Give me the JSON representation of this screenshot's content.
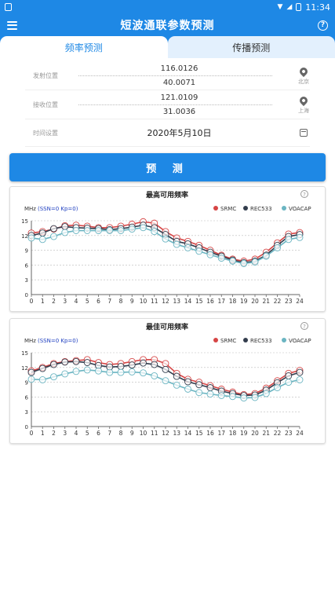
{
  "status": {
    "time": "11:34"
  },
  "appbar": {
    "title": "短波通联参数预测"
  },
  "tabs": [
    {
      "label": "频率预测",
      "active": true
    },
    {
      "label": "传播预测",
      "active": false
    }
  ],
  "form": {
    "tx": {
      "label": "发射位置",
      "lon": "116.0126",
      "lat": "40.0071",
      "city": "北京"
    },
    "rx": {
      "label": "接收位置",
      "lon": "121.0109",
      "lat": "31.0036",
      "city": "上海"
    },
    "time": {
      "label": "时间设置",
      "value": "2020年5月10日"
    }
  },
  "predict_button": "预  测",
  "colors": {
    "primary": "#1e88e5",
    "srmc": "#d64545",
    "rec533": "#333d4d",
    "voacap": "#6bb5c2"
  },
  "chart_data": [
    {
      "type": "line",
      "title": "最高可用频率",
      "ylabel": "MHz",
      "note": "(SSN=0 Kp=0)",
      "ylim": [
        0,
        15
      ],
      "yticks": [
        0,
        3,
        6,
        9,
        12,
        15
      ],
      "x": [
        0,
        1,
        2,
        3,
        4,
        5,
        6,
        7,
        8,
        9,
        10,
        11,
        12,
        13,
        14,
        15,
        16,
        17,
        18,
        19,
        20,
        21,
        22,
        23,
        24
      ],
      "series": [
        {
          "name": "SRMC",
          "color": "#d64545",
          "values": [
            12.5,
            12.8,
            13.3,
            14.0,
            14.1,
            13.9,
            13.6,
            13.6,
            13.9,
            14.3,
            14.8,
            14.5,
            12.8,
            11.5,
            10.8,
            10.0,
            9.0,
            8.0,
            7.2,
            6.8,
            7.2,
            8.6,
            10.5,
            12.3,
            12.6
          ]
        },
        {
          "name": "REC533",
          "color": "#333d4d",
          "values": [
            12.0,
            12.5,
            13.4,
            13.8,
            13.6,
            13.5,
            13.4,
            13.2,
            13.4,
            13.7,
            14.1,
            13.6,
            12.2,
            10.8,
            10.3,
            9.5,
            8.6,
            7.8,
            7.0,
            6.5,
            6.8,
            8.0,
            10.0,
            11.8,
            12.2
          ]
        },
        {
          "name": "VOACAP",
          "color": "#6bb5c2",
          "values": [
            11.5,
            11.2,
            11.8,
            12.6,
            13.0,
            13.0,
            13.0,
            13.0,
            13.0,
            13.3,
            13.6,
            12.8,
            11.3,
            10.2,
            9.5,
            8.8,
            8.1,
            7.4,
            6.8,
            6.3,
            6.6,
            7.8,
            9.5,
            11.2,
            11.6
          ]
        }
      ]
    },
    {
      "type": "line",
      "title": "最佳可用频率",
      "ylabel": "MHz",
      "note": "(SSN=0 Kp=0)",
      "ylim": [
        0,
        15
      ],
      "yticks": [
        0,
        3,
        6,
        9,
        12,
        15
      ],
      "x": [
        0,
        1,
        2,
        3,
        4,
        5,
        6,
        7,
        8,
        9,
        10,
        11,
        12,
        13,
        14,
        15,
        16,
        17,
        18,
        19,
        20,
        21,
        22,
        23,
        24
      ],
      "series": [
        {
          "name": "SRMC",
          "color": "#d64545",
          "values": [
            11.3,
            12.0,
            12.8,
            13.2,
            13.4,
            13.6,
            13.0,
            12.6,
            12.8,
            13.2,
            13.6,
            13.6,
            12.8,
            10.8,
            9.6,
            9.0,
            8.3,
            7.6,
            7.0,
            6.5,
            6.7,
            7.8,
            9.3,
            10.8,
            11.4
          ]
        },
        {
          "name": "REC533",
          "color": "#333d4d",
          "values": [
            11.0,
            11.8,
            12.6,
            13.1,
            13.2,
            13.0,
            12.4,
            12.1,
            12.2,
            12.5,
            12.9,
            12.6,
            11.6,
            10.2,
            9.1,
            8.5,
            7.9,
            7.2,
            6.7,
            6.3,
            6.4,
            7.4,
            8.9,
            10.3,
            11.0
          ]
        },
        {
          "name": "VOACAP",
          "color": "#6bb5c2",
          "values": [
            9.6,
            9.5,
            10.1,
            10.7,
            11.2,
            11.5,
            11.3,
            11.0,
            11.0,
            11.1,
            10.9,
            10.3,
            9.3,
            8.4,
            7.6,
            6.9,
            6.6,
            6.3,
            6.1,
            5.8,
            5.9,
            6.7,
            7.9,
            9.0,
            9.5
          ]
        }
      ]
    }
  ]
}
